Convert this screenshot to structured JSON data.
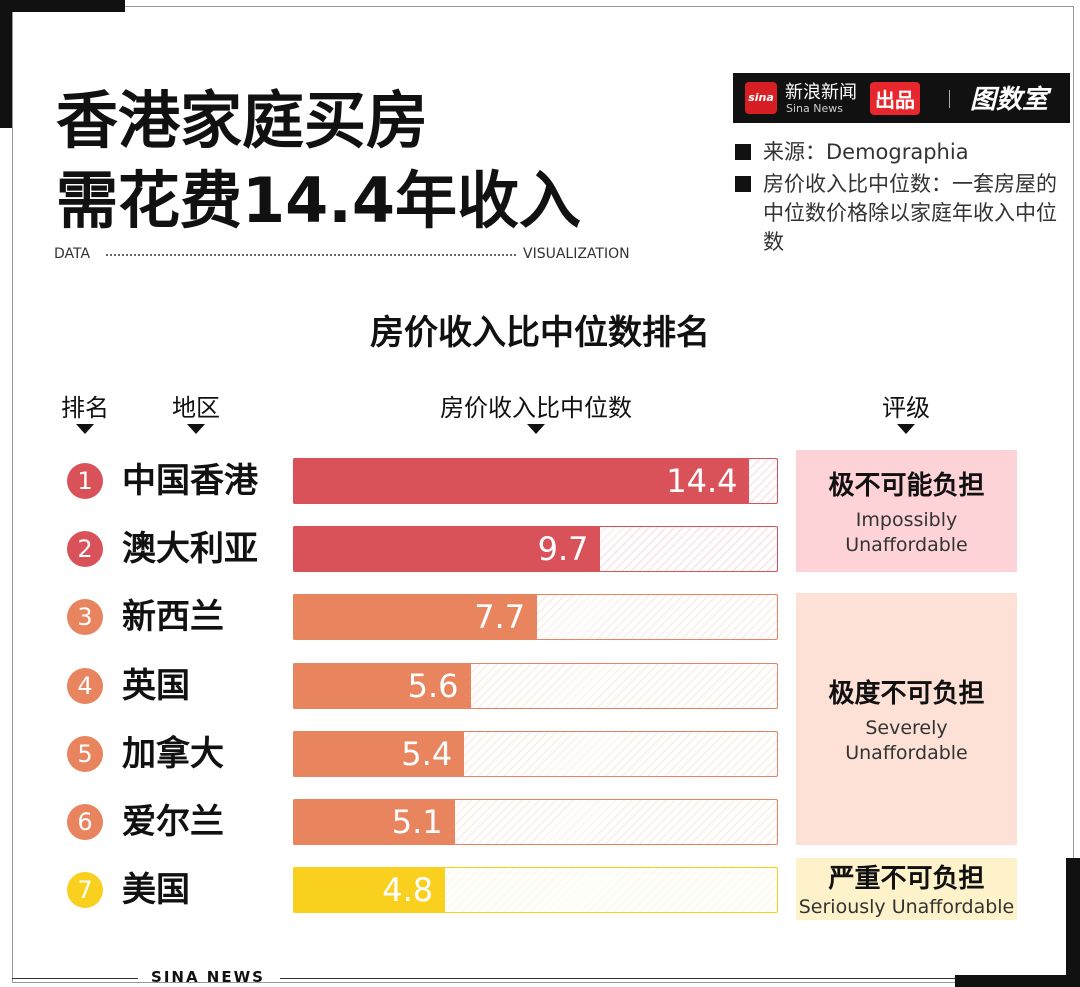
{
  "header": {
    "title_lines": [
      "香港家庭买房",
      "需花费14.4年收入"
    ],
    "tag_left": "DATA",
    "tag_right": "VISUALIZATION"
  },
  "brand": {
    "logo": "sina",
    "name": "新浪新闻",
    "name_en": "Sina News",
    "badge": "出品",
    "partner": "图数室"
  },
  "notes": [
    "来源：Demographia",
    "房价收入比中位数：一套房屋的中位数价格除以家庭年收入中位数"
  ],
  "chart_data": {
    "type": "bar",
    "orientation": "horizontal",
    "title": "房价收入比中位数排名",
    "column_headers": [
      "排名",
      "地区",
      "房价收入比中位数",
      "评级"
    ],
    "ranks": [
      1,
      2,
      3,
      4,
      5,
      6,
      7
    ],
    "categories": [
      "中国香港",
      "澳大利亚",
      "新西兰",
      "英国",
      "加拿大",
      "爱尔兰",
      "美国"
    ],
    "values": [
      14.4,
      9.7,
      7.7,
      5.6,
      5.4,
      5.1,
      4.8
    ],
    "colors": [
      "#d9525a",
      "#d9525a",
      "#e8845e",
      "#e8845e",
      "#e8845e",
      "#e8845e",
      "#f9d01e"
    ],
    "xlim": [
      0,
      15.3
    ],
    "ratings": [
      {
        "label": "极不可能负担",
        "label_en": "Impossibly Unaffordable",
        "color": "#fdd3d7"
      },
      {
        "label": "极度不可负担",
        "label_en": "Severely Unaffordable",
        "color": "#fde1d7"
      },
      {
        "label": "严重不可负担",
        "label_en": "Seriously Unaffordable",
        "color": "#fdf2c9"
      }
    ]
  },
  "footer": "SINA NEWS"
}
